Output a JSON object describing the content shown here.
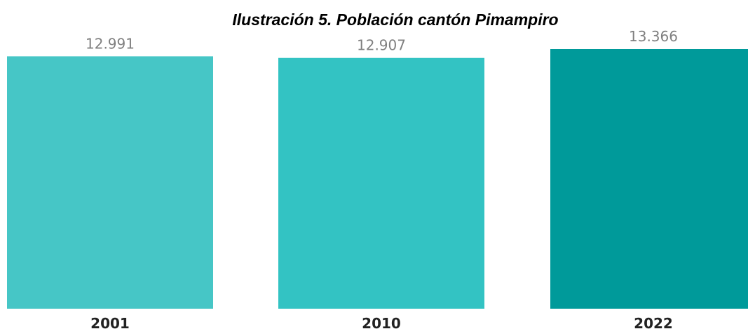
{
  "chart_data": {
    "type": "bar",
    "title": "Ilustración 5. Población cantón Pimampiro",
    "xlabel": "",
    "ylabel": "",
    "categories": [
      "2001",
      "2010",
      "2022"
    ],
    "values": [
      12991,
      12907,
      13366
    ],
    "value_labels": [
      "12.991",
      "12.907",
      "13.366"
    ],
    "bar_colors": [
      "#46c6c6",
      "#33c3c3",
      "#009a9a"
    ],
    "ylim": [
      0,
      13366
    ],
    "grid": false,
    "legend": "none"
  }
}
